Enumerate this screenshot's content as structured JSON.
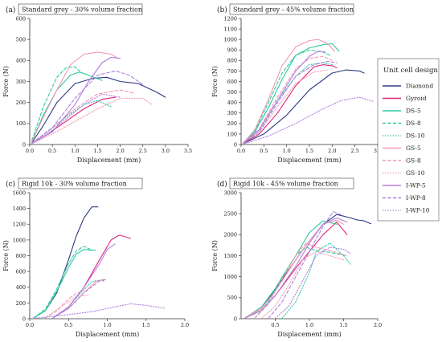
{
  "figure": {
    "legend_title": "Unit cell design",
    "series_styles": [
      {
        "name": "Diamond",
        "color": "#2b3a80",
        "dash": "solid"
      },
      {
        "name": "Gyroid",
        "color": "#e0257a",
        "dash": "solid"
      },
      {
        "name": "DS-5",
        "color": "#2ec9a0",
        "dash": "solid"
      },
      {
        "name": "DS-8",
        "color": "#2ec9a0",
        "dash": "dashed"
      },
      {
        "name": "DS-10",
        "color": "#2ec9a0",
        "dash": "dotted"
      },
      {
        "name": "GS-5",
        "color": "#f29ab0",
        "dash": "solid"
      },
      {
        "name": "GS-8",
        "color": "#f29ab0",
        "dash": "dashed"
      },
      {
        "name": "GS-10",
        "color": "#f29ab0",
        "dash": "dotted"
      },
      {
        "name": "I-WP-5",
        "color": "#b07fe0",
        "dash": "solid"
      },
      {
        "name": "I-WP-8",
        "color": "#b07fe0",
        "dash": "dashed"
      },
      {
        "name": "I-WP-10",
        "color": "#b07fe0",
        "dash": "dotted"
      }
    ]
  },
  "chart_data": [
    {
      "type": "line",
      "panel_label": "(a)",
      "title": "Standard grey - 30% volume fraction",
      "xlabel": "Displacement (mm)",
      "ylabel": "Force (N)",
      "xlim": [
        0,
        3.5
      ],
      "ylim": [
        0,
        600
      ],
      "xticks": [
        "0.0",
        "0.5",
        "1.0",
        "1.5",
        "2.0",
        "2.5",
        "3.0",
        "3.5"
      ],
      "yticks": [
        "0",
        "100",
        "200",
        "300",
        "400",
        "500",
        "600"
      ],
      "series": [
        {
          "name": "Diamond",
          "x": [
            0.05,
            0.3,
            0.6,
            1.0,
            1.4,
            1.7,
            2.0,
            2.4,
            2.8,
            3.0
          ],
          "y": [
            10,
            90,
            200,
            290,
            315,
            320,
            300,
            290,
            250,
            225
          ]
        },
        {
          "name": "Gyroid",
          "x": [
            0.05,
            0.4,
            0.8,
            1.2,
            1.6,
            1.9
          ],
          "y": [
            5,
            50,
            110,
            170,
            215,
            225
          ]
        },
        {
          "name": "DS-5",
          "x": [
            0.05,
            0.3,
            0.6,
            0.9,
            1.1,
            1.3,
            1.6
          ],
          "y": [
            15,
            140,
            260,
            330,
            345,
            330,
            305
          ]
        },
        {
          "name": "DS-8",
          "x": [
            0.05,
            0.3,
            0.6,
            0.8,
            1.0,
            1.1
          ],
          "y": [
            20,
            180,
            320,
            365,
            370,
            350
          ]
        },
        {
          "name": "DS-10",
          "x": [
            0.05,
            0.4,
            0.8,
            1.2,
            1.5,
            1.8
          ],
          "y": [
            8,
            60,
            130,
            190,
            210,
            180
          ]
        },
        {
          "name": "GS-5",
          "x": [
            0.05,
            0.3,
            0.6,
            0.9,
            1.2,
            1.5,
            1.8,
            1.95
          ],
          "y": [
            15,
            130,
            260,
            380,
            430,
            440,
            430,
            410
          ]
        },
        {
          "name": "GS-8",
          "x": [
            0.05,
            0.5,
            1.0,
            1.5,
            2.0,
            2.3
          ],
          "y": [
            8,
            80,
            170,
            240,
            260,
            245
          ]
        },
        {
          "name": "GS-10",
          "x": [
            0.05,
            0.5,
            1.0,
            1.5,
            2.0,
            2.5,
            2.7
          ],
          "y": [
            5,
            50,
            110,
            170,
            220,
            220,
            190
          ]
        },
        {
          "name": "I-WP-5",
          "x": [
            0.05,
            0.5,
            1.0,
            1.3,
            1.6,
            1.8,
            2.0
          ],
          "y": [
            5,
            60,
            190,
            300,
            390,
            415,
            410
          ]
        },
        {
          "name": "I-WP-8",
          "x": [
            0.05,
            0.5,
            1.0,
            1.5,
            1.9,
            2.2,
            2.5
          ],
          "y": [
            5,
            80,
            220,
            330,
            350,
            330,
            285
          ]
        },
        {
          "name": "I-WP-10",
          "x": [
            0.05,
            0.4,
            0.8,
            1.2,
            1.6,
            2.0
          ],
          "y": [
            5,
            50,
            120,
            190,
            240,
            225
          ]
        }
      ]
    },
    {
      "type": "line",
      "panel_label": "(b)",
      "title": "Standard grey - 45% volume fraction",
      "xlabel": "Displacement (mm)",
      "ylabel": "Force (N)",
      "xlim": [
        0,
        3.0
      ],
      "ylim": [
        0,
        1200
      ],
      "xticks": [
        "0.0",
        "0.5",
        "1.0",
        "1.5",
        "2.0",
        "2.5",
        "3.0"
      ],
      "yticks": [
        "0",
        "100",
        "200",
        "300",
        "400",
        "500",
        "600",
        "700",
        "800",
        "900",
        "1000",
        "1100",
        "1200"
      ],
      "series": [
        {
          "name": "Diamond",
          "x": [
            0.05,
            0.5,
            1.0,
            1.5,
            2.0,
            2.3,
            2.6,
            2.7
          ],
          "y": [
            10,
            100,
            280,
            520,
            680,
            710,
            700,
            680
          ]
        },
        {
          "name": "Gyroid",
          "x": [
            0.05,
            0.4,
            0.8,
            1.2,
            1.6,
            1.8,
            2.0,
            2.1
          ],
          "y": [
            10,
            100,
            300,
            560,
            740,
            760,
            750,
            730
          ]
        },
        {
          "name": "DS-5",
          "x": [
            0.05,
            0.3,
            0.6,
            0.9,
            1.2,
            1.5,
            1.8,
            2.0,
            2.15
          ],
          "y": [
            15,
            120,
            350,
            620,
            850,
            920,
            950,
            960,
            890
          ]
        },
        {
          "name": "DS-8",
          "x": [
            0.05,
            0.3,
            0.6,
            0.9,
            1.2,
            1.5,
            1.8,
            1.95
          ],
          "y": [
            15,
            130,
            400,
            680,
            850,
            900,
            880,
            850
          ]
        },
        {
          "name": "DS-10",
          "x": [
            0.05,
            0.4,
            0.8,
            1.2,
            1.5,
            1.8,
            2.0
          ],
          "y": [
            10,
            140,
            420,
            650,
            760,
            780,
            760
          ]
        },
        {
          "name": "GS-5",
          "x": [
            0.05,
            0.3,
            0.6,
            0.9,
            1.2,
            1.5,
            1.7,
            1.9,
            2.05
          ],
          "y": [
            15,
            140,
            430,
            750,
            930,
            990,
            1000,
            960,
            890
          ]
        },
        {
          "name": "GS-8",
          "x": [
            0.05,
            0.4,
            0.8,
            1.2,
            1.5,
            1.8,
            2.0
          ],
          "y": [
            10,
            150,
            450,
            720,
            820,
            840,
            800
          ]
        },
        {
          "name": "GS-10",
          "x": [
            0.05,
            0.4,
            0.8,
            1.2,
            1.6,
            1.9
          ],
          "y": [
            10,
            120,
            360,
            580,
            690,
            710
          ]
        },
        {
          "name": "I-WP-5",
          "x": [
            0.05,
            0.4,
            0.8,
            1.2,
            1.5,
            1.7,
            1.85
          ],
          "y": [
            10,
            140,
            420,
            700,
            840,
            890,
            880
          ]
        },
        {
          "name": "I-WP-8",
          "x": [
            0.05,
            0.4,
            0.8,
            1.2,
            1.6,
            1.9,
            2.1
          ],
          "y": [
            10,
            120,
            400,
            650,
            760,
            790,
            780
          ]
        },
        {
          "name": "I-WP-10",
          "x": [
            0.05,
            0.6,
            1.2,
            1.8,
            2.2,
            2.6,
            2.9
          ],
          "y": [
            5,
            80,
            200,
            340,
            420,
            450,
            410
          ]
        }
      ]
    },
    {
      "type": "line",
      "panel_label": "(c)",
      "title": "Rigid 10k - 30% volume fraction",
      "xlabel": "Displacement (mm)",
      "ylabel": "Force (N)",
      "xlim": [
        0,
        2.0
      ],
      "ylim": [
        0,
        1600
      ],
      "xticks": [
        "0.0",
        "0.5",
        "1.0",
        "1.5",
        "2.0"
      ],
      "yticks": [
        "0",
        "200",
        "400",
        "600",
        "800",
        "1000",
        "1200",
        "1400",
        "1600"
      ],
      "series": [
        {
          "name": "Diamond",
          "x": [
            0.05,
            0.2,
            0.35,
            0.5,
            0.6,
            0.7,
            0.8,
            0.88
          ],
          "y": [
            10,
            100,
            330,
            750,
            1050,
            1280,
            1420,
            1420
          ]
        },
        {
          "name": "Gyroid",
          "x": [
            0.3,
            0.5,
            0.7,
            0.9,
            1.05,
            1.15,
            1.2,
            1.3
          ],
          "y": [
            10,
            150,
            400,
            750,
            1000,
            1060,
            1050,
            1020
          ]
        },
        {
          "name": "DS-5",
          "x": [
            0.05,
            0.2,
            0.35,
            0.5,
            0.6,
            0.7,
            0.78,
            0.85
          ],
          "y": [
            10,
            100,
            350,
            650,
            820,
            880,
            870,
            870
          ]
        },
        {
          "name": "DS-8",
          "x": [
            0.05,
            0.2,
            0.35,
            0.5,
            0.6,
            0.7,
            0.78
          ],
          "y": [
            10,
            120,
            380,
            700,
            860,
            920,
            880
          ]
        },
        {
          "name": "DS-10",
          "x": [
            0.3,
            0.5,
            0.65,
            0.8,
            0.9,
            0.95
          ],
          "y": [
            10,
            150,
            320,
            470,
            490,
            480
          ]
        },
        {
          "name": "GS-5",
          "x": [
            0.3,
            0.5,
            0.7,
            0.85,
            0.95
          ],
          "y": [
            10,
            130,
            330,
            470,
            500
          ]
        },
        {
          "name": "GS-8",
          "x": [
            0.2,
            0.35,
            0.5,
            0.6,
            0.7
          ],
          "y": [
            10,
            100,
            250,
            320,
            360
          ]
        },
        {
          "name": "GS-10",
          "x": [
            0.2,
            0.4,
            0.6,
            0.75
          ],
          "y": [
            10,
            150,
            280,
            300
          ]
        },
        {
          "name": "I-WP-5",
          "x": [
            0.3,
            0.5,
            0.7,
            0.9,
            1.0,
            1.1
          ],
          "y": [
            10,
            150,
            400,
            700,
            880,
            950
          ]
        },
        {
          "name": "I-WP-8",
          "x": [
            0.3,
            0.5,
            0.7,
            0.9,
            1.0
          ],
          "y": [
            10,
            130,
            330,
            480,
            500
          ]
        },
        {
          "name": "I-WP-10",
          "x": [
            0.05,
            0.4,
            0.8,
            1.1,
            1.3,
            1.5,
            1.75
          ],
          "y": [
            5,
            40,
            90,
            150,
            190,
            170,
            130
          ]
        }
      ]
    },
    {
      "type": "line",
      "panel_label": "(d)",
      "title": "Rigid 10k - 45% volume fraction",
      "xlabel": "Displacement (mm)",
      "ylabel": "Force (N)",
      "xlim": [
        0,
        2.0
      ],
      "ylim": [
        0,
        3000
      ],
      "xticks": [
        "0.5",
        "1.0",
        "1.5",
        "2.0"
      ],
      "yticks": [
        "0",
        "500",
        "1000",
        "1500",
        "2000",
        "2500",
        "3000"
      ],
      "series": [
        {
          "name": "Diamond",
          "x": [
            0.05,
            0.3,
            0.5,
            0.8,
            1.0,
            1.2,
            1.4,
            1.6,
            1.7,
            1.8,
            1.9
          ],
          "y": [
            10,
            250,
            700,
            1400,
            1850,
            2250,
            2480,
            2400,
            2350,
            2330,
            2260
          ]
        },
        {
          "name": "Gyroid",
          "x": [
            0.05,
            0.3,
            0.5,
            0.8,
            1.0,
            1.2,
            1.4,
            1.55
          ],
          "y": [
            10,
            200,
            550,
            1200,
            1600,
            2000,
            2300,
            2000
          ]
        },
        {
          "name": "DS-5",
          "x": [
            0.05,
            0.3,
            0.5,
            0.8,
            1.0,
            1.2,
            1.4
          ],
          "y": [
            10,
            280,
            720,
            1500,
            2050,
            2330,
            2250
          ]
        },
        {
          "name": "DS-8",
          "x": [
            0.2,
            0.4,
            0.6,
            0.8,
            0.95,
            1.1,
            1.3,
            1.55
          ],
          "y": [
            10,
            400,
            1000,
            1500,
            1700,
            1620,
            1580,
            1500
          ]
        },
        {
          "name": "DS-10",
          "x": [
            0.6,
            0.8,
            1.0,
            1.1,
            1.3,
            1.5,
            1.6
          ],
          "y": [
            10,
            400,
            1100,
            1600,
            1800,
            1500,
            1300
          ]
        },
        {
          "name": "GS-5",
          "x": [
            0.05,
            0.3,
            0.5,
            0.8,
            1.0,
            1.2,
            1.4,
            1.5
          ],
          "y": [
            10,
            250,
            650,
            1400,
            1850,
            2250,
            2350,
            2250
          ]
        },
        {
          "name": "GS-8",
          "x": [
            0.2,
            0.4,
            0.6,
            0.8,
            0.95,
            1.1,
            1.3,
            1.55
          ],
          "y": [
            10,
            350,
            950,
            1500,
            1800,
            1700,
            1620,
            1500
          ]
        },
        {
          "name": "GS-10",
          "x": [
            0.3,
            0.5,
            0.7,
            0.9,
            1.1,
            1.3,
            1.5
          ],
          "y": [
            10,
            300,
            800,
            1400,
            1600,
            1500,
            1400
          ]
        },
        {
          "name": "I-WP-5",
          "x": [
            0.05,
            0.3,
            0.5,
            0.8,
            1.0,
            1.2,
            1.4,
            1.55
          ],
          "y": [
            10,
            200,
            550,
            1250,
            1800,
            2250,
            2400,
            2300
          ]
        },
        {
          "name": "I-WP-8",
          "x": [
            0.4,
            0.6,
            0.8,
            1.0,
            1.2,
            1.35,
            1.5
          ],
          "y": [
            10,
            400,
            1000,
            1600,
            2200,
            2550,
            2450
          ]
        },
        {
          "name": "I-WP-10",
          "x": [
            0.5,
            0.7,
            0.9,
            1.1,
            1.3,
            1.5,
            1.6
          ],
          "y": [
            10,
            300,
            900,
            1500,
            1700,
            1650,
            1550
          ]
        }
      ]
    }
  ]
}
